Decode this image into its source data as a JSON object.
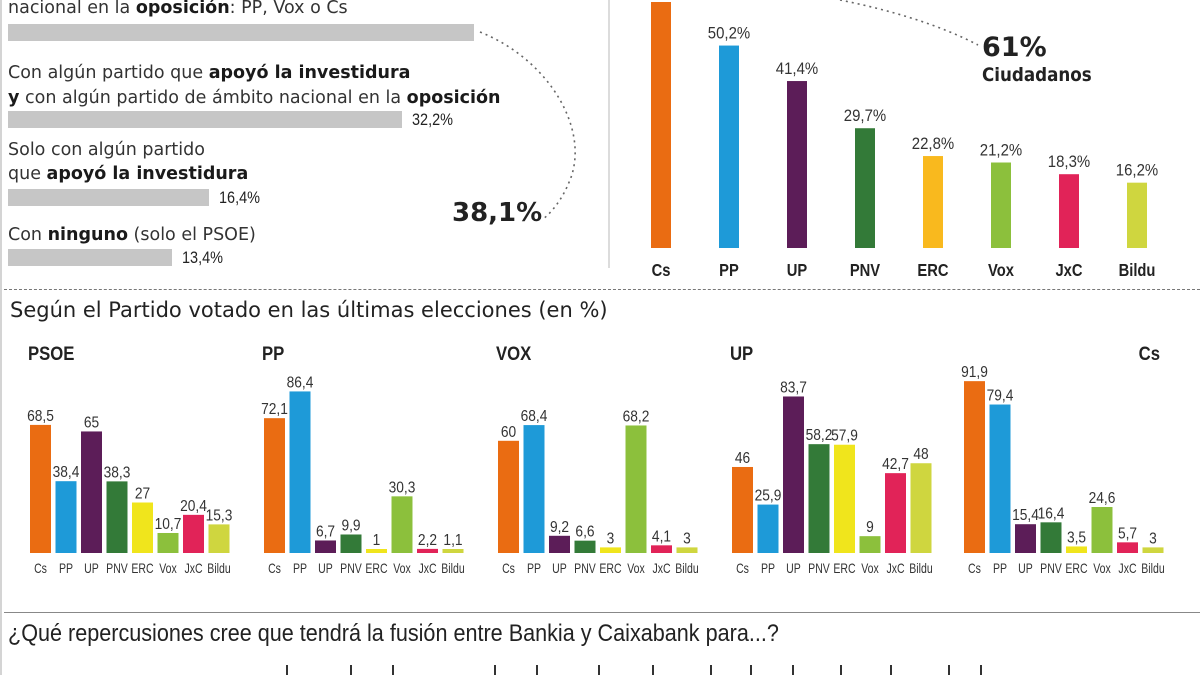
{
  "colors": {
    "Cs": "#ea6c12",
    "PP": "#1e9ad8",
    "UP": "#5c1d58",
    "PNV": "#337a38",
    "ERC": "#f9b91e",
    "ERC_small": "#f0e51c",
    "Vox": "#8cc03c",
    "JxC": "#e12358",
    "Bildu": "#cfd63f",
    "grey_bar": "#c6c6c6"
  },
  "left_panel": {
    "items": [
      {
        "parts": [
          {
            "t": "nacional en la ",
            "b": false
          },
          {
            "t": "oposición",
            "b": true
          },
          {
            "t": ": PP, Vox o Cs",
            "b": false
          }
        ],
        "value": 38.1,
        "value_label": ""
      },
      {
        "line1": [
          {
            "t": "Con algún partido que ",
            "b": false
          },
          {
            "t": "apoyó la investidura",
            "b": true
          }
        ],
        "line2": [
          {
            "t": "y",
            "b": true
          },
          {
            "t": " con algún partido de ámbito nacional en la ",
            "b": false
          },
          {
            "t": "oposición",
            "b": true
          }
        ],
        "value": 32.2,
        "value_label": "32,2%"
      },
      {
        "line1": [
          {
            "t": "Solo con algún partido",
            "b": false
          }
        ],
        "line2": [
          {
            "t": "que ",
            "b": false
          },
          {
            "t": "apoyó la investidura",
            "b": true
          }
        ],
        "value": 16.4,
        "value_label": "16,4%"
      },
      {
        "line1": [
          {
            "t": "Con ",
            "b": false
          },
          {
            "t": "ninguno",
            "b": true
          },
          {
            "t": " (solo el PSOE)",
            "b": false
          }
        ],
        "value": 13.4,
        "value_label": "13,4%"
      }
    ],
    "callout": "38,1%"
  },
  "top_chart_callout": {
    "value": "61%",
    "label": "Ciudadanos"
  },
  "section_title": "Según el Partido votado en las últimas elecciones (en %)",
  "bottom_question": "¿Qué repercusiones cree que tendrá la fusión entre Bankia y Caixabank para...?",
  "chart_data": [
    {
      "type": "bar",
      "title": "",
      "orientation": "horizontal",
      "categories": [
        "nacional en la oposición: PP, Vox o Cs",
        "Con algún partido que apoyó la investidura y con algún partido de ámbito nacional en la oposición",
        "Solo con algún partido que apoyó la investidura",
        "Con ninguno (solo el PSOE)"
      ],
      "values": [
        38.1,
        32.2,
        16.4,
        13.4
      ],
      "value_labels": [
        "38,1%",
        "32,2%",
        "16,4%",
        "13,4%"
      ],
      "xlim": [
        0,
        45
      ]
    },
    {
      "type": "bar",
      "title": "",
      "categories": [
        "Cs",
        "PP",
        "UP",
        "PNV",
        "ERC",
        "Vox",
        "JxC",
        "Bildu"
      ],
      "values": [
        61,
        50.2,
        41.4,
        29.7,
        22.8,
        21.2,
        18.3,
        16.2
      ],
      "value_labels": [
        "61%",
        "50,2%",
        "41,4%",
        "29,7%",
        "22,8%",
        "21,2%",
        "18,3%",
        "16,2%"
      ],
      "ylim": [
        0,
        61
      ]
    },
    {
      "type": "bar",
      "title": "PSOE",
      "categories": [
        "Cs",
        "PP",
        "UP",
        "PNV",
        "ERC",
        "Vox",
        "JxC",
        "Bildu"
      ],
      "values": [
        68.5,
        38.4,
        65,
        38.3,
        27,
        10.7,
        20.4,
        15.3
      ],
      "value_labels": [
        "68,5",
        "38,4",
        "65",
        "38,3",
        "27",
        "10,7",
        "20,4",
        "15,3"
      ],
      "ylim": [
        0,
        100
      ]
    },
    {
      "type": "bar",
      "title": "PP",
      "categories": [
        "Cs",
        "PP",
        "UP",
        "PNV",
        "ERC",
        "Vox",
        "JxC",
        "Bildu"
      ],
      "values": [
        72.1,
        86.4,
        6.7,
        9.9,
        1,
        30.3,
        2.2,
        1.1
      ],
      "value_labels": [
        "72,1",
        "86,4",
        "6,7",
        "9,9",
        "1",
        "30,3",
        "2,2",
        "1,1"
      ],
      "ylim": [
        0,
        100
      ]
    },
    {
      "type": "bar",
      "title": "VOX",
      "categories": [
        "Cs",
        "PP",
        "UP",
        "PNV",
        "ERC",
        "Vox",
        "JxC",
        "Bildu"
      ],
      "values": [
        60,
        68.4,
        9.2,
        6.6,
        3,
        68.2,
        4.1,
        3
      ],
      "value_labels": [
        "60",
        "68,4",
        "9,2",
        "6,6",
        "3",
        "68,2",
        "4,1",
        "3"
      ],
      "ylim": [
        0,
        100
      ]
    },
    {
      "type": "bar",
      "title": "UP",
      "categories": [
        "Cs",
        "PP",
        "UP",
        "PNV",
        "ERC",
        "Vox",
        "JxC",
        "Bildu"
      ],
      "values": [
        46,
        25.9,
        83.7,
        58.2,
        57.9,
        9,
        42.7,
        48
      ],
      "value_labels": [
        "46",
        "25,9",
        "83,7",
        "58,2",
        "57,9",
        "9",
        "42,7",
        "48"
      ],
      "ylim": [
        0,
        100
      ]
    },
    {
      "type": "bar",
      "title": "Cs",
      "categories": [
        "Cs",
        "PP",
        "UP",
        "PNV",
        "ERC",
        "Vox",
        "JxC",
        "Bildu"
      ],
      "values": [
        91.9,
        79.4,
        15.4,
        16.4,
        3.5,
        24.6,
        5.7,
        3
      ],
      "value_labels": [
        "91,9",
        "79,4",
        "15,4",
        "16,4",
        "3,5",
        "24,6",
        "5,7",
        "3"
      ],
      "ylim": [
        0,
        100
      ]
    }
  ]
}
